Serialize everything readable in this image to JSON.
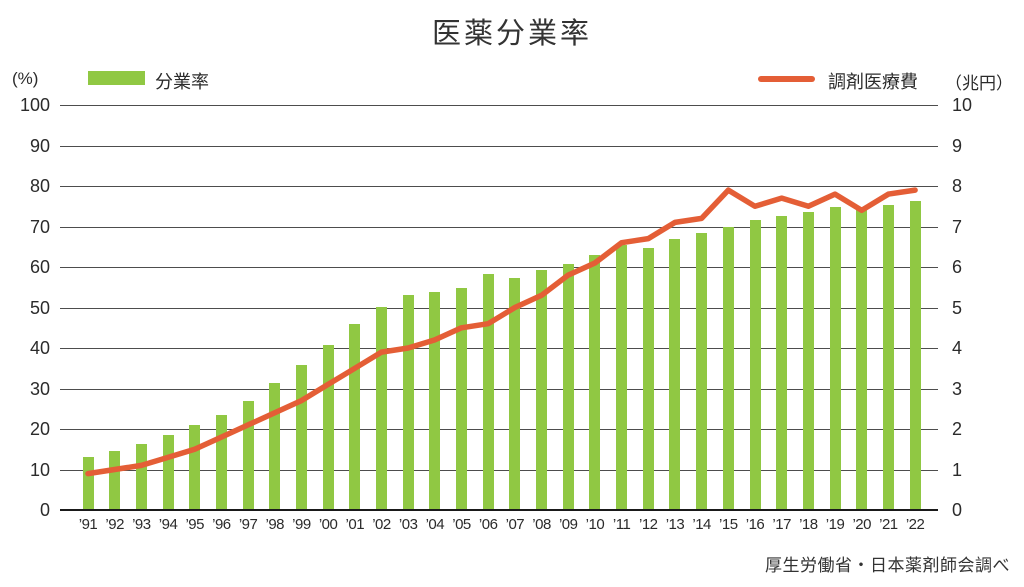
{
  "header": {
    "title": "医薬分業率"
  },
  "legend": {
    "bar_label": "分業率",
    "line_label": "調剤医療費"
  },
  "axes": {
    "left_unit": "(%)",
    "right_unit": "（兆円）"
  },
  "footer": {
    "source": "厚生労働省・日本薬剤師会調べ"
  },
  "colors": {
    "bar_green": "#90c843",
    "line_orange": "#e45e36",
    "gridline": "#4d4d4d",
    "axis": "#1a1a1a",
    "text": "#2b2b2b"
  },
  "chart_data": {
    "type": "bar",
    "title": "医薬分業率",
    "categories": [
      "’91",
      "’92",
      "’93",
      "’94",
      "’95",
      "’96",
      "’97",
      "’98",
      "’99",
      "’00",
      "’01",
      "’02",
      "’03",
      "’04",
      "’05",
      "’06",
      "’07",
      "’08",
      "’09",
      "’10",
      "’11",
      "’12",
      "’13",
      "’14",
      "’15",
      "’16",
      "’17",
      "’18",
      "’19",
      "’20",
      "’21",
      "’22"
    ],
    "series": [
      {
        "name": "分業率",
        "render": "bar",
        "axis": "left",
        "unit": "%",
        "color": "#90c843",
        "values": [
          13.2,
          14.6,
          16.3,
          18.5,
          20.9,
          23.5,
          26.8,
          31.4,
          35.7,
          40.8,
          45.9,
          50.1,
          53.2,
          53.9,
          54.7,
          58.3,
          57.3,
          59.2,
          60.7,
          62.9,
          65.5,
          64.8,
          67.0,
          68.5,
          70.0,
          71.7,
          72.5,
          73.7,
          74.8,
          74.9,
          75.3,
          76.4
        ]
      },
      {
        "name": "調剤医療費",
        "render": "line",
        "axis": "right",
        "unit": "兆円",
        "color": "#e45e36",
        "values": [
          0.9,
          1.0,
          1.1,
          1.3,
          1.5,
          1.8,
          2.1,
          2.4,
          2.7,
          3.1,
          3.5,
          3.9,
          4.0,
          4.2,
          4.5,
          4.6,
          5.0,
          5.3,
          5.8,
          6.1,
          6.6,
          6.7,
          7.1,
          7.2,
          7.9,
          7.5,
          7.7,
          7.5,
          7.8,
          7.4,
          7.8,
          7.9
        ]
      }
    ],
    "left_axis": {
      "label": "(%)",
      "min": 0,
      "max": 100,
      "ticks": [
        0,
        10,
        20,
        30,
        40,
        50,
        60,
        70,
        80,
        90,
        100
      ]
    },
    "right_axis": {
      "label": "（兆円）",
      "min": 0,
      "max": 10,
      "ticks": [
        0,
        1,
        2,
        3,
        4,
        5,
        6,
        7,
        8,
        9,
        10
      ]
    },
    "grid": true,
    "legend_position": "top",
    "source": "厚生労働省・日本薬剤師会調べ"
  }
}
